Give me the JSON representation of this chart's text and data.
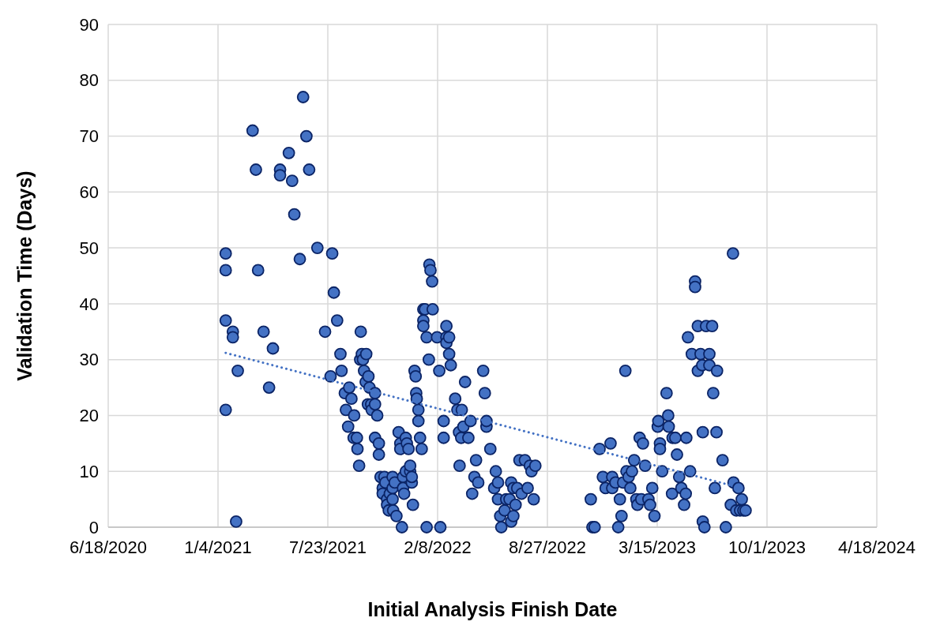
{
  "chart_data": {
    "type": "scatter",
    "xlabel": "Initial Analysis Finish Date",
    "ylabel": "Validation Time (Days)",
    "xlim": [
      "2020-06-18",
      "2024-04-18"
    ],
    "xticks": [
      {
        "value": "2020-06-18",
        "label": "6/18/2020"
      },
      {
        "value": "2021-01-04",
        "label": "1/4/2021"
      },
      {
        "value": "2021-07-23",
        "label": "7/23/2021"
      },
      {
        "value": "2022-02-08",
        "label": "2/8/2022"
      },
      {
        "value": "2022-08-27",
        "label": "8/27/2022"
      },
      {
        "value": "2023-03-15",
        "label": "3/15/2023"
      },
      {
        "value": "2023-10-01",
        "label": "10/1/2023"
      },
      {
        "value": "2024-04-18",
        "label": "4/18/2024"
      }
    ],
    "ylim": [
      0,
      90
    ],
    "yticks": [
      0,
      10,
      20,
      30,
      40,
      50,
      60,
      70,
      80,
      90
    ],
    "grid": true,
    "series": [
      {
        "color": "#4472c4",
        "marker": "circle",
        "x": [
          "2021-01-18",
          "2021-01-18",
          "2021-01-18",
          "2021-01-18",
          "2021-01-31",
          "2021-01-31",
          "2021-02-09",
          "2021-02-06",
          "2021-03-08",
          "2021-03-14",
          "2021-03-18",
          "2021-03-28",
          "2021-04-07",
          "2021-04-14",
          "2021-04-27",
          "2021-04-27",
          "2021-05-13",
          "2021-05-19",
          "2021-05-23",
          "2021-06-02",
          "2021-06-08",
          "2021-06-14",
          "2021-06-19",
          "2021-07-04",
          "2021-07-18",
          "2021-07-28",
          "2021-07-31",
          "2021-08-03",
          "2021-08-09",
          "2021-08-15",
          "2021-08-17",
          "2021-08-23",
          "2021-08-25",
          "2021-08-29",
          "2021-08-31",
          "2021-09-04",
          "2021-09-08",
          "2021-09-09",
          "2021-09-14",
          "2021-09-15",
          "2021-09-18",
          "2021-09-20",
          "2021-09-21",
          "2021-09-23",
          "2021-09-25",
          "2021-09-27",
          "2021-09-30",
          "2021-10-01",
          "2021-10-04",
          "2021-10-05",
          "2021-10-07",
          "2021-10-10",
          "2021-10-11",
          "2021-10-17",
          "2021-10-17",
          "2021-10-17",
          "2021-10-21",
          "2021-10-24",
          "2021-10-24",
          "2021-10-27",
          "2021-10-31",
          "2021-10-31",
          "2021-11-03",
          "2021-11-05",
          "2021-11-08",
          "2021-11-08",
          "2021-11-11",
          "2021-11-13",
          "2021-11-18",
          "2021-11-18",
          "2021-11-18",
          "2021-11-19",
          "2021-11-22",
          "2021-11-25",
          "2021-11-29",
          "2021-12-02",
          "2021-12-02",
          "2021-12-05",
          "2021-12-07",
          "2021-12-07",
          "2021-12-09",
          "2021-12-12",
          "2021-12-12",
          "2021-12-14",
          "2021-12-17",
          "2021-12-20",
          "2021-12-20",
          "2021-12-23",
          "2021-12-23",
          "2021-12-25",
          "2021-12-28",
          "2021-12-30",
          "2021-12-31",
          "2022-01-01",
          "2022-01-04",
          "2022-01-04",
          "2022-01-07",
          "2022-01-10",
          "2022-01-13",
          "2022-01-13",
          "2022-01-13",
          "2022-01-16",
          "2022-01-19",
          "2022-01-23",
          "2022-01-24",
          "2022-01-26",
          "2022-01-29",
          "2022-01-30",
          "2022-02-07",
          "2022-02-11",
          "2022-02-13",
          "2022-01-19",
          "2022-02-19",
          "2022-02-19",
          "2022-02-24",
          "2022-02-24",
          "2022-02-24",
          "2022-03-01",
          "2022-03-01",
          "2022-03-04",
          "2022-03-12",
          "2022-03-16",
          "2022-03-19",
          "2022-03-20",
          "2022-03-23",
          "2022-03-24",
          "2022-03-27",
          "2022-03-30",
          "2022-04-05",
          "2022-04-09",
          "2022-04-12",
          "2022-04-16",
          "2022-04-19",
          "2022-04-23",
          "2022-05-02",
          "2022-05-05",
          "2022-05-08",
          "2022-05-08",
          "2022-05-15",
          "2022-05-22",
          "2022-05-25",
          "2022-05-29",
          "2022-05-29",
          "2022-06-02",
          "2022-06-04",
          "2022-06-10",
          "2022-06-13",
          "2022-06-19",
          "2022-06-22",
          "2022-06-22",
          "2022-06-26",
          "2022-06-26",
          "2022-06-30",
          "2022-07-03",
          "2022-07-07",
          "2022-07-11",
          "2022-07-17",
          "2022-07-22",
          "2022-07-26",
          "2022-07-29",
          "2022-08-02",
          "2022-08-05",
          "2022-11-14",
          "2022-11-17",
          "2022-11-21",
          "2022-11-30",
          "2022-12-06",
          "2022-12-11",
          "2022-12-20",
          "2022-12-23",
          "2022-12-23",
          "2022-12-29",
          "2023-01-03",
          "2023-01-06",
          "2023-01-09",
          "2023-01-12",
          "2023-01-16",
          "2023-01-18",
          "2023-01-22",
          "2023-01-25",
          "2023-01-28",
          "2023-02-01",
          "2023-02-05",
          "2023-02-07",
          "2023-02-11",
          "2023-02-14",
          "2023-02-17",
          "2023-02-21",
          "2023-02-27",
          "2023-03-02",
          "2023-03-06",
          "2023-03-10",
          "2023-03-16",
          "2023-03-17",
          "2023-03-20",
          "2023-03-20",
          "2023-03-24",
          "2023-04-01",
          "2023-04-04",
          "2023-04-05",
          "2023-04-11",
          "2023-04-12",
          "2023-04-17",
          "2023-04-20",
          "2023-04-24",
          "2023-04-28",
          "2023-05-03",
          "2023-05-06",
          "2023-05-07",
          "2023-05-10",
          "2023-05-14",
          "2023-05-17",
          "2023-05-23",
          "2023-05-23",
          "2023-05-28",
          "2023-05-28",
          "2023-06-02",
          "2023-06-05",
          "2023-06-06",
          "2023-06-06",
          "2023-06-09",
          "2023-06-12",
          "2023-06-18",
          "2023-06-18",
          "2023-06-23",
          "2023-06-25",
          "2023-06-28",
          "2023-07-01",
          "2023-07-02",
          "2023-07-12",
          "2023-07-18",
          "2023-07-27",
          "2023-07-31",
          "2023-08-01",
          "2023-08-06",
          "2023-08-10",
          "2023-08-13",
          "2023-08-16",
          "2023-08-19",
          "2023-08-23"
        ],
        "values": [
          49,
          46,
          37,
          21,
          35,
          34,
          28,
          1,
          71,
          64,
          46,
          35,
          25,
          32,
          64,
          63,
          67,
          62,
          56,
          48,
          77,
          70,
          64,
          50,
          35,
          27,
          49,
          42,
          37,
          31,
          28,
          24,
          21,
          18,
          25,
          23,
          16,
          20,
          16,
          14,
          11,
          30,
          35,
          31,
          30,
          28,
          26,
          31,
          22,
          27,
          25,
          22,
          21,
          24,
          22,
          16,
          20,
          15,
          13,
          9,
          7,
          6,
          9,
          8,
          5,
          4,
          3,
          6,
          9,
          7,
          5,
          3,
          8,
          2,
          17,
          15,
          14,
          0,
          9,
          7,
          6,
          16,
          10,
          15,
          14,
          10,
          11,
          8,
          9,
          4,
          28,
          27,
          24,
          23,
          21,
          19,
          16,
          14,
          39,
          37,
          36,
          39,
          34,
          30,
          47,
          46,
          44,
          39,
          34,
          28,
          0,
          0,
          19,
          16,
          36,
          34,
          33,
          34,
          31,
          29,
          23,
          21,
          17,
          11,
          16,
          21,
          18,
          26,
          16,
          19,
          6,
          9,
          12,
          8,
          28,
          24,
          18,
          19,
          14,
          7,
          10,
          8,
          5,
          2,
          0,
          3,
          5,
          5,
          8,
          1,
          7,
          2,
          4,
          7,
          12,
          6,
          12,
          7,
          11,
          10,
          5,
          11,
          5,
          0,
          0,
          14,
          9,
          7,
          15,
          9,
          7,
          8,
          0,
          5,
          2,
          8,
          28,
          10,
          9,
          7,
          10,
          12,
          5,
          4,
          16,
          5,
          15,
          11,
          5,
          4,
          7,
          2,
          18,
          19,
          15,
          14,
          10,
          24,
          20,
          18,
          6,
          16,
          16,
          13,
          9,
          7,
          4,
          6,
          16,
          34,
          10,
          31,
          44,
          43,
          28,
          36,
          31,
          29,
          17,
          1,
          0,
          36,
          31,
          29,
          36,
          24,
          7,
          17,
          28,
          12,
          0,
          4,
          49,
          8,
          3,
          7,
          3,
          5,
          3,
          3
        ]
      },
      {
        "type": "line",
        "color": "#4472c4",
        "marker": "none",
        "line_style": "dotted",
        "x": [
          "2021-01-18",
          "2023-07-27"
        ],
        "values": [
          31.2,
          7.5
        ]
      }
    ]
  }
}
